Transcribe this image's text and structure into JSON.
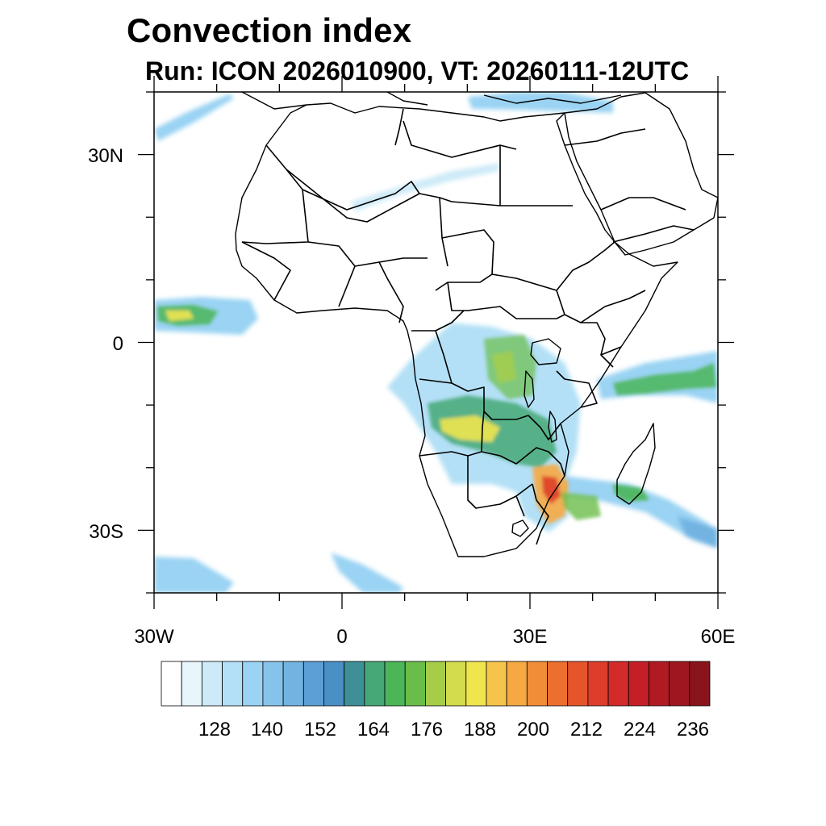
{
  "title": "Convection index",
  "subtitle": "Run: ICON 2026010900,  VT: 20260111-12UTC",
  "map": {
    "region": "Africa",
    "lon_range": [
      -30,
      60
    ],
    "lat_range": [
      -40,
      40
    ],
    "x_tick_labels": [
      "30W",
      "0",
      "30E",
      "60E"
    ],
    "y_tick_labels": [
      "30N",
      "0",
      "30S"
    ],
    "minor_x_ticks": [
      -30,
      -20,
      -10,
      0,
      10,
      20,
      30,
      40,
      50,
      60
    ],
    "minor_y_ticks": [
      -40,
      -30,
      -20,
      -10,
      0,
      10,
      20,
      30,
      40
    ],
    "major_x_ticks": [
      -30,
      0,
      30,
      60
    ],
    "major_y_ticks": [
      -30,
      0,
      30
    ]
  },
  "colorbar": {
    "colors": [
      "#ffffff",
      "#e8f5fb",
      "#cdeaf8",
      "#b3e0f6",
      "#9ad3f3",
      "#85c3ea",
      "#72b3e2",
      "#5c9fd6",
      "#4a8fc6",
      "#3f8f96",
      "#45a876",
      "#4bb557",
      "#6bbd4a",
      "#a6cd48",
      "#d2dc4d",
      "#f0e54f",
      "#f6c44a",
      "#f6a842",
      "#f18d38",
      "#ec6f30",
      "#e5552c",
      "#dd3d2a",
      "#d32a2a",
      "#c41e27",
      "#b01a23",
      "#9e1720",
      "#8a141c"
    ],
    "labels": [
      "128",
      "140",
      "152",
      "164",
      "176",
      "188",
      "200",
      "212",
      "224",
      "236"
    ]
  }
}
